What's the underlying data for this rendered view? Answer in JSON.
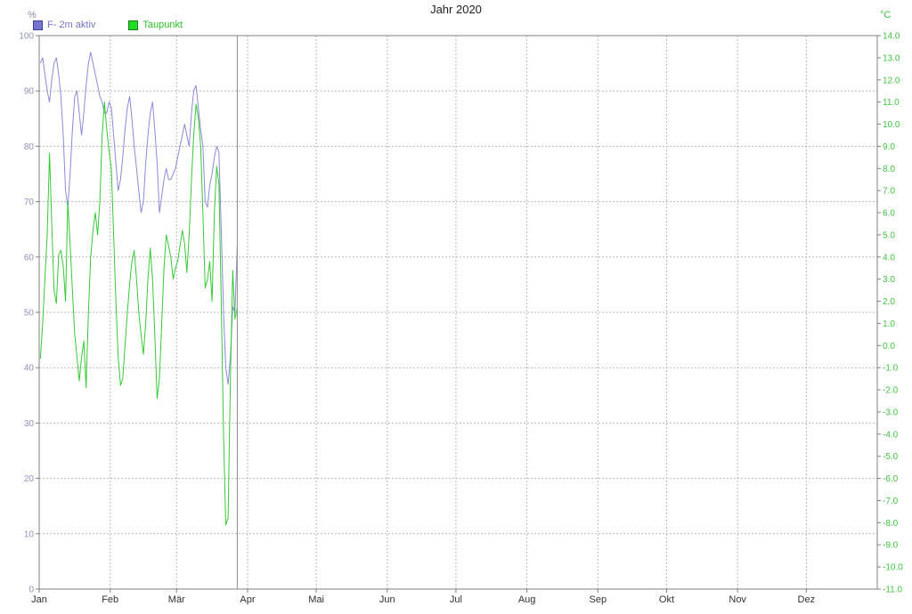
{
  "title": "Jahr 2020",
  "legend": [
    {
      "label": "F- 2m aktiv",
      "swatch_color": "#7575d0",
      "swatch_border": "#3c3c9c",
      "text_color": "#7474c4"
    },
    {
      "label": "Taupunkt",
      "swatch_color": "#22dd22",
      "swatch_border": "#1a7a1a",
      "text_color": "#2abf2a"
    }
  ],
  "chart_data": {
    "type": "line",
    "title": "Jahr 2020",
    "year": 2020,
    "x_axis": {
      "tick_labels": [
        "Jan",
        "Feb",
        "Mär",
        "Apr",
        "Mai",
        "Jun",
        "Jul",
        "Aug",
        "Sep",
        "Okt",
        "Nov",
        "Dez"
      ],
      "month_start_day_offsets": [
        0,
        31,
        60,
        91,
        121,
        152,
        182,
        213,
        244,
        274,
        305,
        335
      ],
      "days_in_year": 366,
      "grid": "dashed"
    },
    "left_axis": {
      "label": "%",
      "min": 0,
      "max": 100,
      "step": 10,
      "tick_format": "integer",
      "color": "#8f8fbe"
    },
    "right_axis": {
      "label": "°C",
      "min": -11,
      "max": 14,
      "step": 1,
      "tick_format": "one_decimal",
      "color": "#3fc43f"
    },
    "grid_rows_at_percent": [
      10,
      20,
      30,
      40,
      50,
      60,
      70,
      80,
      90
    ],
    "cursor_line": {
      "at_last_data_point": true,
      "color": "#8c8c8c"
    },
    "series": [
      {
        "name": "F- 2m aktiv",
        "axis": "left",
        "unit": "%",
        "color": "#8a8ad8",
        "interval": "daily",
        "start": "Jan 1",
        "end": "Mar 27",
        "values": [
          95,
          96,
          93,
          90,
          88,
          92,
          95,
          96,
          93,
          89,
          82,
          72,
          69,
          75,
          83,
          89,
          90,
          86,
          82,
          86,
          91,
          95,
          97,
          95,
          93,
          91,
          89,
          88,
          86,
          86,
          88,
          87,
          82,
          77,
          72,
          74,
          78,
          83,
          87,
          89,
          85,
          80,
          76,
          72,
          68,
          70,
          77,
          82,
          86,
          88,
          83,
          77,
          68,
          71,
          74,
          76,
          74,
          74,
          75,
          76,
          78,
          80,
          82,
          84,
          82,
          80,
          86,
          90,
          91,
          87,
          83,
          80,
          70,
          69,
          73,
          75,
          78,
          80,
          79,
          65,
          50,
          40,
          37,
          42,
          51,
          50,
          62
        ]
      },
      {
        "name": "Taupunkt",
        "axis": "right",
        "unit": "°C",
        "color": "#35c935",
        "interval": "daily",
        "start": "Jan 1",
        "end": "Mar 27",
        "values": [
          -0.6,
          1.0,
          3.0,
          5.0,
          8.7,
          5.5,
          2.5,
          1.9,
          4.1,
          4.3,
          3.6,
          2.0,
          6.5,
          4.6,
          2.5,
          0.5,
          -0.5,
          -1.6,
          -0.5,
          0.2,
          -1.9,
          1.5,
          4.0,
          5.2,
          6.0,
          5.0,
          6.5,
          9.5,
          11.0,
          9.8,
          8.8,
          8.0,
          5.0,
          2.0,
          -0.5,
          -1.8,
          -1.5,
          0.0,
          1.5,
          2.8,
          3.8,
          4.3,
          3.0,
          1.5,
          0.5,
          -0.4,
          1.0,
          3.0,
          4.4,
          3.0,
          0.5,
          -2.4,
          -1.5,
          1.0,
          3.5,
          5.0,
          4.5,
          4.0,
          3.0,
          3.5,
          3.8,
          4.5,
          5.2,
          4.6,
          3.3,
          5.0,
          7.5,
          9.5,
          10.9,
          10.3,
          9.0,
          6.0,
          2.6,
          3.0,
          3.8,
          2.0,
          6.0,
          8.1,
          7.3,
          2.0,
          -4.0,
          -8.1,
          -7.8,
          -1.5,
          3.4,
          1.2,
          1.7
        ]
      }
    ],
    "plot_colors": {
      "border": "#808080",
      "gridline": "#b8b8b8",
      "month_label": "#303030"
    }
  }
}
